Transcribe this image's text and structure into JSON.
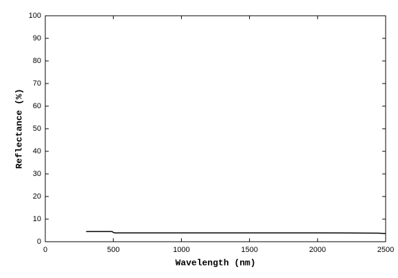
{
  "chart_data": {
    "type": "line",
    "x_label": "Wavelength (nm)",
    "y_label": "Reflectance (%)",
    "x": [
      300,
      490,
      500,
      510,
      1000,
      1500,
      2000,
      2450,
      2500
    ],
    "series": [
      {
        "name": "Reflectance",
        "color": "#000000",
        "values": [
          4.5,
          4.5,
          4.1,
          3.9,
          3.9,
          3.9,
          3.9,
          3.8,
          3.6
        ]
      }
    ],
    "xlim": [
      0,
      2500
    ],
    "xticks": [
      0,
      500,
      1000,
      1500,
      2000,
      2500
    ],
    "ylim": [
      0,
      100
    ],
    "yticks": [
      0,
      10,
      20,
      30,
      40,
      50,
      60,
      70,
      80,
      90,
      100
    ]
  }
}
